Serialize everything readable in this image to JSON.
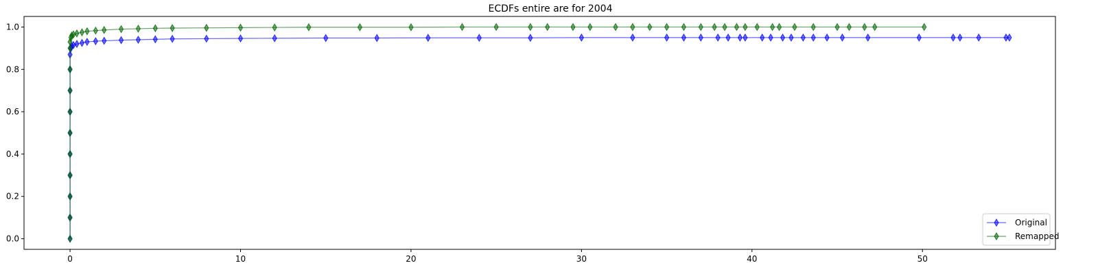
{
  "chart_data": {
    "type": "line",
    "title": "ECDFs entire are for 2004",
    "xlabel": "",
    "ylabel": "",
    "xlim": [
      -2.7,
      57.8
    ],
    "ylim": [
      -0.05,
      1.05
    ],
    "x_ticks": [
      0,
      10,
      20,
      30,
      40,
      50
    ],
    "y_ticks": [
      0.0,
      0.2,
      0.4,
      0.6,
      0.8,
      1.0
    ],
    "grid": false,
    "legend_position": "lower-right",
    "series": [
      {
        "name": "Original",
        "color": "#0000ff",
        "marker": "thin-diamond",
        "points": [
          [
            0.0,
            0.0
          ],
          [
            0.0,
            0.1
          ],
          [
            0.0,
            0.2
          ],
          [
            0.0,
            0.3
          ],
          [
            0.0,
            0.4
          ],
          [
            0.0,
            0.5
          ],
          [
            0.0,
            0.6
          ],
          [
            0.0,
            0.7
          ],
          [
            0.0,
            0.8
          ],
          [
            0.0,
            0.87
          ],
          [
            0.05,
            0.9
          ],
          [
            0.1,
            0.91
          ],
          [
            0.2,
            0.915
          ],
          [
            0.4,
            0.92
          ],
          [
            0.7,
            0.925
          ],
          [
            1.0,
            0.93
          ],
          [
            1.5,
            0.933
          ],
          [
            2.0,
            0.935
          ],
          [
            3.0,
            0.938
          ],
          [
            4.0,
            0.94
          ],
          [
            5.0,
            0.942
          ],
          [
            6.0,
            0.944
          ],
          [
            8.0,
            0.945
          ],
          [
            10.0,
            0.946
          ],
          [
            12.0,
            0.947
          ],
          [
            15.0,
            0.948
          ],
          [
            18.0,
            0.948
          ],
          [
            21.0,
            0.949
          ],
          [
            24.0,
            0.949
          ],
          [
            27.0,
            0.949
          ],
          [
            30.0,
            0.95
          ],
          [
            33.0,
            0.95
          ],
          [
            35.0,
            0.95
          ],
          [
            36.0,
            0.95
          ],
          [
            37.0,
            0.95
          ],
          [
            38.0,
            0.95
          ],
          [
            38.6,
            0.95
          ],
          [
            39.3,
            0.95
          ],
          [
            39.6,
            0.95
          ],
          [
            40.6,
            0.95
          ],
          [
            41.1,
            0.95
          ],
          [
            41.8,
            0.95
          ],
          [
            42.3,
            0.95
          ],
          [
            43.0,
            0.95
          ],
          [
            43.6,
            0.95
          ],
          [
            44.4,
            0.95
          ],
          [
            45.3,
            0.95
          ],
          [
            46.8,
            0.95
          ],
          [
            49.8,
            0.95
          ],
          [
            51.8,
            0.95
          ],
          [
            52.2,
            0.95
          ],
          [
            53.3,
            0.95
          ],
          [
            54.9,
            0.95
          ],
          [
            55.1,
            0.95
          ]
        ]
      },
      {
        "name": "Remapped",
        "color": "#006400",
        "marker": "thin-diamond",
        "points": [
          [
            0.0,
            0.0
          ],
          [
            0.0,
            0.1
          ],
          [
            0.0,
            0.2
          ],
          [
            0.0,
            0.3
          ],
          [
            0.0,
            0.4
          ],
          [
            0.0,
            0.5
          ],
          [
            0.0,
            0.6
          ],
          [
            0.0,
            0.7
          ],
          [
            0.0,
            0.8
          ],
          [
            0.0,
            0.9
          ],
          [
            0.0,
            0.93
          ],
          [
            0.05,
            0.95
          ],
          [
            0.1,
            0.96
          ],
          [
            0.2,
            0.965
          ],
          [
            0.4,
            0.97
          ],
          [
            0.7,
            0.975
          ],
          [
            1.0,
            0.98
          ],
          [
            1.5,
            0.983
          ],
          [
            2.0,
            0.986
          ],
          [
            3.0,
            0.99
          ],
          [
            4.0,
            0.992
          ],
          [
            5.0,
            0.994
          ],
          [
            6.0,
            0.995
          ],
          [
            8.0,
            0.996
          ],
          [
            10.0,
            0.997
          ],
          [
            12.0,
            0.998
          ],
          [
            14.0,
            0.999
          ],
          [
            17.0,
            0.999
          ],
          [
            20.0,
            0.999
          ],
          [
            23.0,
            1.0
          ],
          [
            25.0,
            1.0
          ],
          [
            27.0,
            1.0
          ],
          [
            28.0,
            1.0
          ],
          [
            29.5,
            1.0
          ],
          [
            30.5,
            1.0
          ],
          [
            32.0,
            1.0
          ],
          [
            33.0,
            1.0
          ],
          [
            34.0,
            1.0
          ],
          [
            35.0,
            1.0
          ],
          [
            36.0,
            1.0
          ],
          [
            37.0,
            1.0
          ],
          [
            37.8,
            1.0
          ],
          [
            38.4,
            1.0
          ],
          [
            39.1,
            1.0
          ],
          [
            39.6,
            1.0
          ],
          [
            40.3,
            1.0
          ],
          [
            41.2,
            1.0
          ],
          [
            41.6,
            1.0
          ],
          [
            42.5,
            1.0
          ],
          [
            43.6,
            1.0
          ],
          [
            45.0,
            1.0
          ],
          [
            45.7,
            1.0
          ],
          [
            46.6,
            1.0
          ],
          [
            47.2,
            1.0
          ],
          [
            50.1,
            1.0
          ]
        ]
      }
    ]
  }
}
